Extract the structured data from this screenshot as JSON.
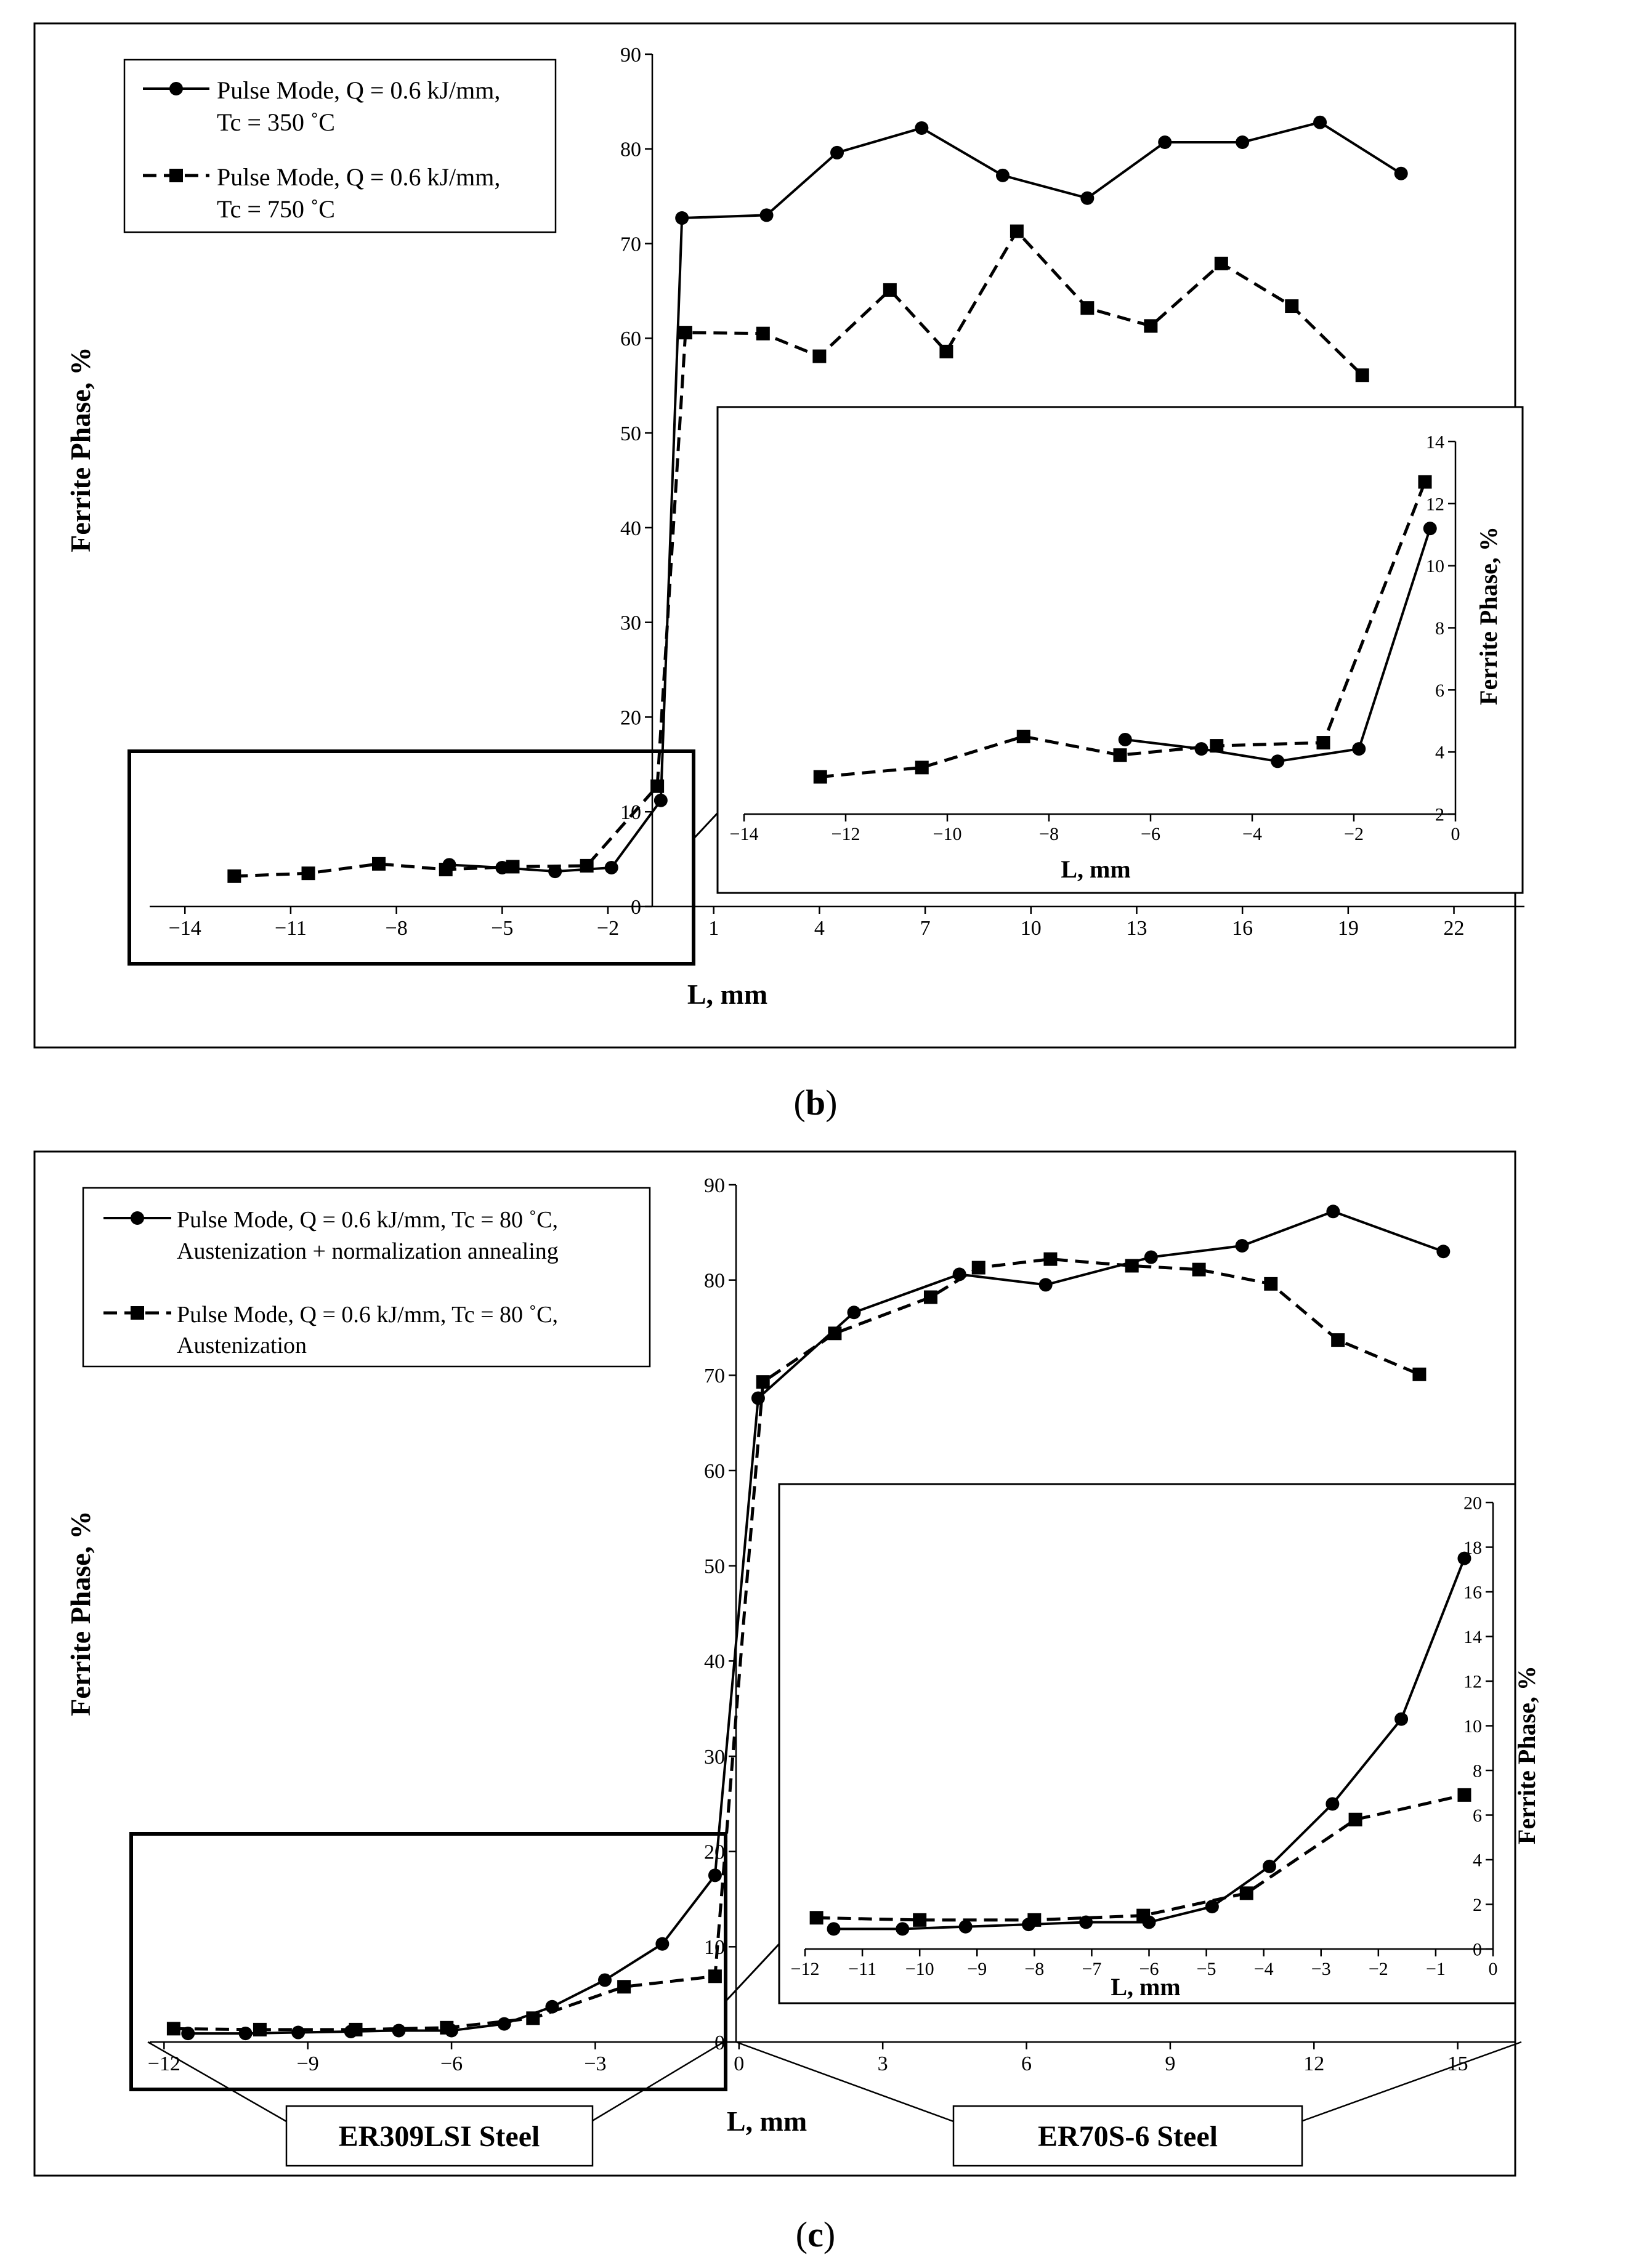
{
  "chart_data": [
    {
      "id": "b-main",
      "type": "line",
      "panel_label": "b",
      "title": "",
      "xlabel": "L, mm",
      "ylabel": "Ferrite Phase, %",
      "xlim": [
        -15,
        24
      ],
      "ylim": [
        0,
        90
      ],
      "xticks": [
        "−14",
        "−11",
        "−8",
        "−5",
        "−2",
        "1",
        "4",
        "7",
        "10",
        "13",
        "16",
        "19",
        "22"
      ],
      "xtick_values": [
        -14,
        -11,
        -8,
        -5,
        -2,
        1,
        4,
        7,
        10,
        13,
        16,
        19,
        22
      ],
      "yticks": [
        "0",
        "10",
        "20",
        "30",
        "40",
        "50",
        "60",
        "70",
        "80",
        "90"
      ],
      "ytick_values": [
        0,
        10,
        20,
        30,
        40,
        50,
        60,
        70,
        80,
        90
      ],
      "series": [
        {
          "name_line1": "Pulse Mode, Q = 0.6 kJ/mm,",
          "name_line2": "Tc = 350 ˚C",
          "marker": "circle",
          "dash": "solid",
          "x": [
            -6.5,
            -5.0,
            -3.5,
            -1.9,
            -0.5,
            0.1,
            2.5,
            4.5,
            6.9,
            9.2,
            11.6,
            13.8,
            16.0,
            18.2,
            20.5
          ],
          "y": [
            4.4,
            4.1,
            3.7,
            4.1,
            11.2,
            72.7,
            73.0,
            79.6,
            82.2,
            77.2,
            74.8,
            80.7,
            80.7,
            82.8,
            77.4
          ]
        },
        {
          "name_line1": "Pulse Mode, Q = 0.6 kJ/mm,",
          "name_line2": "Tc = 750 ˚C",
          "marker": "square",
          "dash": "dashed",
          "x": [
            -12.6,
            -10.5,
            -8.5,
            -6.6,
            -4.7,
            -2.6,
            -0.6,
            0.2,
            2.4,
            4.0,
            6.0,
            7.6,
            9.6,
            11.6,
            13.4,
            15.4,
            17.4,
            19.4
          ],
          "y": [
            3.2,
            3.5,
            4.5,
            3.9,
            4.2,
            4.3,
            12.7,
            60.6,
            60.5,
            58.1,
            65.1,
            58.6,
            71.3,
            63.2,
            61.3,
            67.9,
            63.4,
            56.1
          ]
        }
      ]
    },
    {
      "id": "b-inset",
      "type": "line",
      "title": "",
      "xlabel": "L, mm",
      "ylabel": "Ferrite  Phase, %",
      "xlim": [
        -14,
        0
      ],
      "ylim": [
        2,
        14
      ],
      "xticks": [
        "−14",
        "−12",
        "−10",
        "−8",
        "−6",
        "−4",
        "−2",
        "0"
      ],
      "xtick_values": [
        -14,
        -12,
        -10,
        -8,
        -6,
        -4,
        -2,
        0
      ],
      "yticks": [
        "2",
        "4",
        "6",
        "8",
        "10",
        "12",
        "14"
      ],
      "ytick_values": [
        2,
        4,
        6,
        8,
        10,
        12,
        14
      ],
      "series": [
        {
          "name": "Tc = 350 ˚C",
          "marker": "circle",
          "dash": "solid",
          "x": [
            -6.5,
            -5.0,
            -3.5,
            -1.9,
            -0.5
          ],
          "y": [
            4.4,
            4.1,
            3.7,
            4.1,
            11.2
          ]
        },
        {
          "name": "Tc = 750 ˚C",
          "marker": "square",
          "dash": "dashed",
          "x": [
            -12.5,
            -10.5,
            -8.5,
            -6.6,
            -4.7,
            -2.6,
            -0.6
          ],
          "y": [
            3.2,
            3.5,
            4.5,
            3.9,
            4.2,
            4.3,
            12.7
          ]
        }
      ]
    },
    {
      "id": "c-main",
      "type": "line",
      "panel_label": "c",
      "title": "",
      "xlabel": "L, mm",
      "ylabel": "Ferrite Phase, %",
      "xlim": [
        -12.3,
        16.2
      ],
      "ylim": [
        0,
        90
      ],
      "xticks": [
        "−12",
        "−9",
        "−6",
        "−3",
        "0",
        "3",
        "6",
        "9",
        "12",
        "15"
      ],
      "xtick_values": [
        -12,
        -9,
        -6,
        -3,
        0,
        3,
        6,
        9,
        12,
        15
      ],
      "yticks": [
        "0",
        "10",
        "20",
        "30",
        "40",
        "50",
        "60",
        "70",
        "80",
        "90"
      ],
      "ytick_values": [
        0,
        10,
        20,
        30,
        40,
        50,
        60,
        70,
        80,
        90
      ],
      "region_labels": [
        "ER309LSI Steel",
        "ER70S-6 Steel"
      ],
      "series": [
        {
          "name_line1": "Pulse Mode, Q = 0.6 kJ/mm, Tc = 80 ˚C,",
          "name_line2": "Austenization + normalization  annealing",
          "marker": "circle",
          "dash": "solid",
          "x": [
            -11.5,
            -10.3,
            -9.2,
            -8.1,
            -7.1,
            -6.0,
            -4.9,
            -3.9,
            -2.8,
            -1.6,
            -0.5,
            0.4,
            2.4,
            4.6,
            6.4,
            8.6,
            10.5,
            12.4,
            14.7
          ],
          "y": [
            0.9,
            0.9,
            1.0,
            1.1,
            1.2,
            1.2,
            1.9,
            3.7,
            6.5,
            10.3,
            17.5,
            67.6,
            76.6,
            80.6,
            79.5,
            82.4,
            83.6,
            87.2,
            83.0
          ]
        },
        {
          "name_line1": "Pulse Mode, Q = 0.6 kJ/mm, Tc = 80 ˚C,",
          "name_line2": "Austenization",
          "marker": "square",
          "dash": "dashed",
          "x": [
            -11.8,
            -10.0,
            -8.0,
            -6.1,
            -4.3,
            -2.4,
            -0.5,
            0.5,
            2.0,
            4.0,
            5.0,
            6.5,
            8.2,
            9.6,
            11.1,
            12.5,
            14.2
          ],
          "y": [
            1.4,
            1.3,
            1.3,
            1.5,
            2.5,
            5.8,
            6.9,
            69.3,
            74.4,
            78.2,
            81.3,
            82.2,
            81.5,
            81.1,
            79.6,
            73.7,
            70.1
          ]
        }
      ]
    },
    {
      "id": "c-inset",
      "type": "line",
      "title": "",
      "xlabel": "L, mm",
      "ylabel": "Ferrite  Phase, %",
      "xlim": [
        -12,
        0
      ],
      "ylim": [
        0,
        20
      ],
      "xticks": [
        "−12",
        "−11",
        "−10",
        "−9",
        "−8",
        "−7",
        "−6",
        "−5",
        "−4",
        "−3",
        "−2",
        "−1",
        "0"
      ],
      "xtick_values": [
        -12,
        -11,
        -10,
        -9,
        -8,
        -7,
        -6,
        -5,
        -4,
        -3,
        -2,
        -1,
        0
      ],
      "yticks": [
        "0",
        "2",
        "4",
        "6",
        "8",
        "10",
        "12",
        "14",
        "16",
        "18",
        "20"
      ],
      "ytick_values": [
        0,
        2,
        4,
        6,
        8,
        10,
        12,
        14,
        16,
        18,
        20
      ],
      "series": [
        {
          "name": "Austenization + normalization annealing",
          "marker": "circle",
          "dash": "solid",
          "x": [
            -11.5,
            -10.3,
            -9.2,
            -8.1,
            -7.1,
            -6.0,
            -4.9,
            -3.9,
            -2.8,
            -1.6,
            -0.5
          ],
          "y": [
            0.9,
            0.9,
            1.0,
            1.1,
            1.2,
            1.2,
            1.9,
            3.7,
            6.5,
            10.3,
            17.5
          ]
        },
        {
          "name": "Austenization",
          "marker": "square",
          "dash": "dashed",
          "x": [
            -11.8,
            -10.0,
            -8.0,
            -6.1,
            -4.3,
            -2.4,
            -0.5
          ],
          "y": [
            1.4,
            1.3,
            1.3,
            1.5,
            2.5,
            5.8,
            6.9
          ]
        }
      ]
    }
  ]
}
